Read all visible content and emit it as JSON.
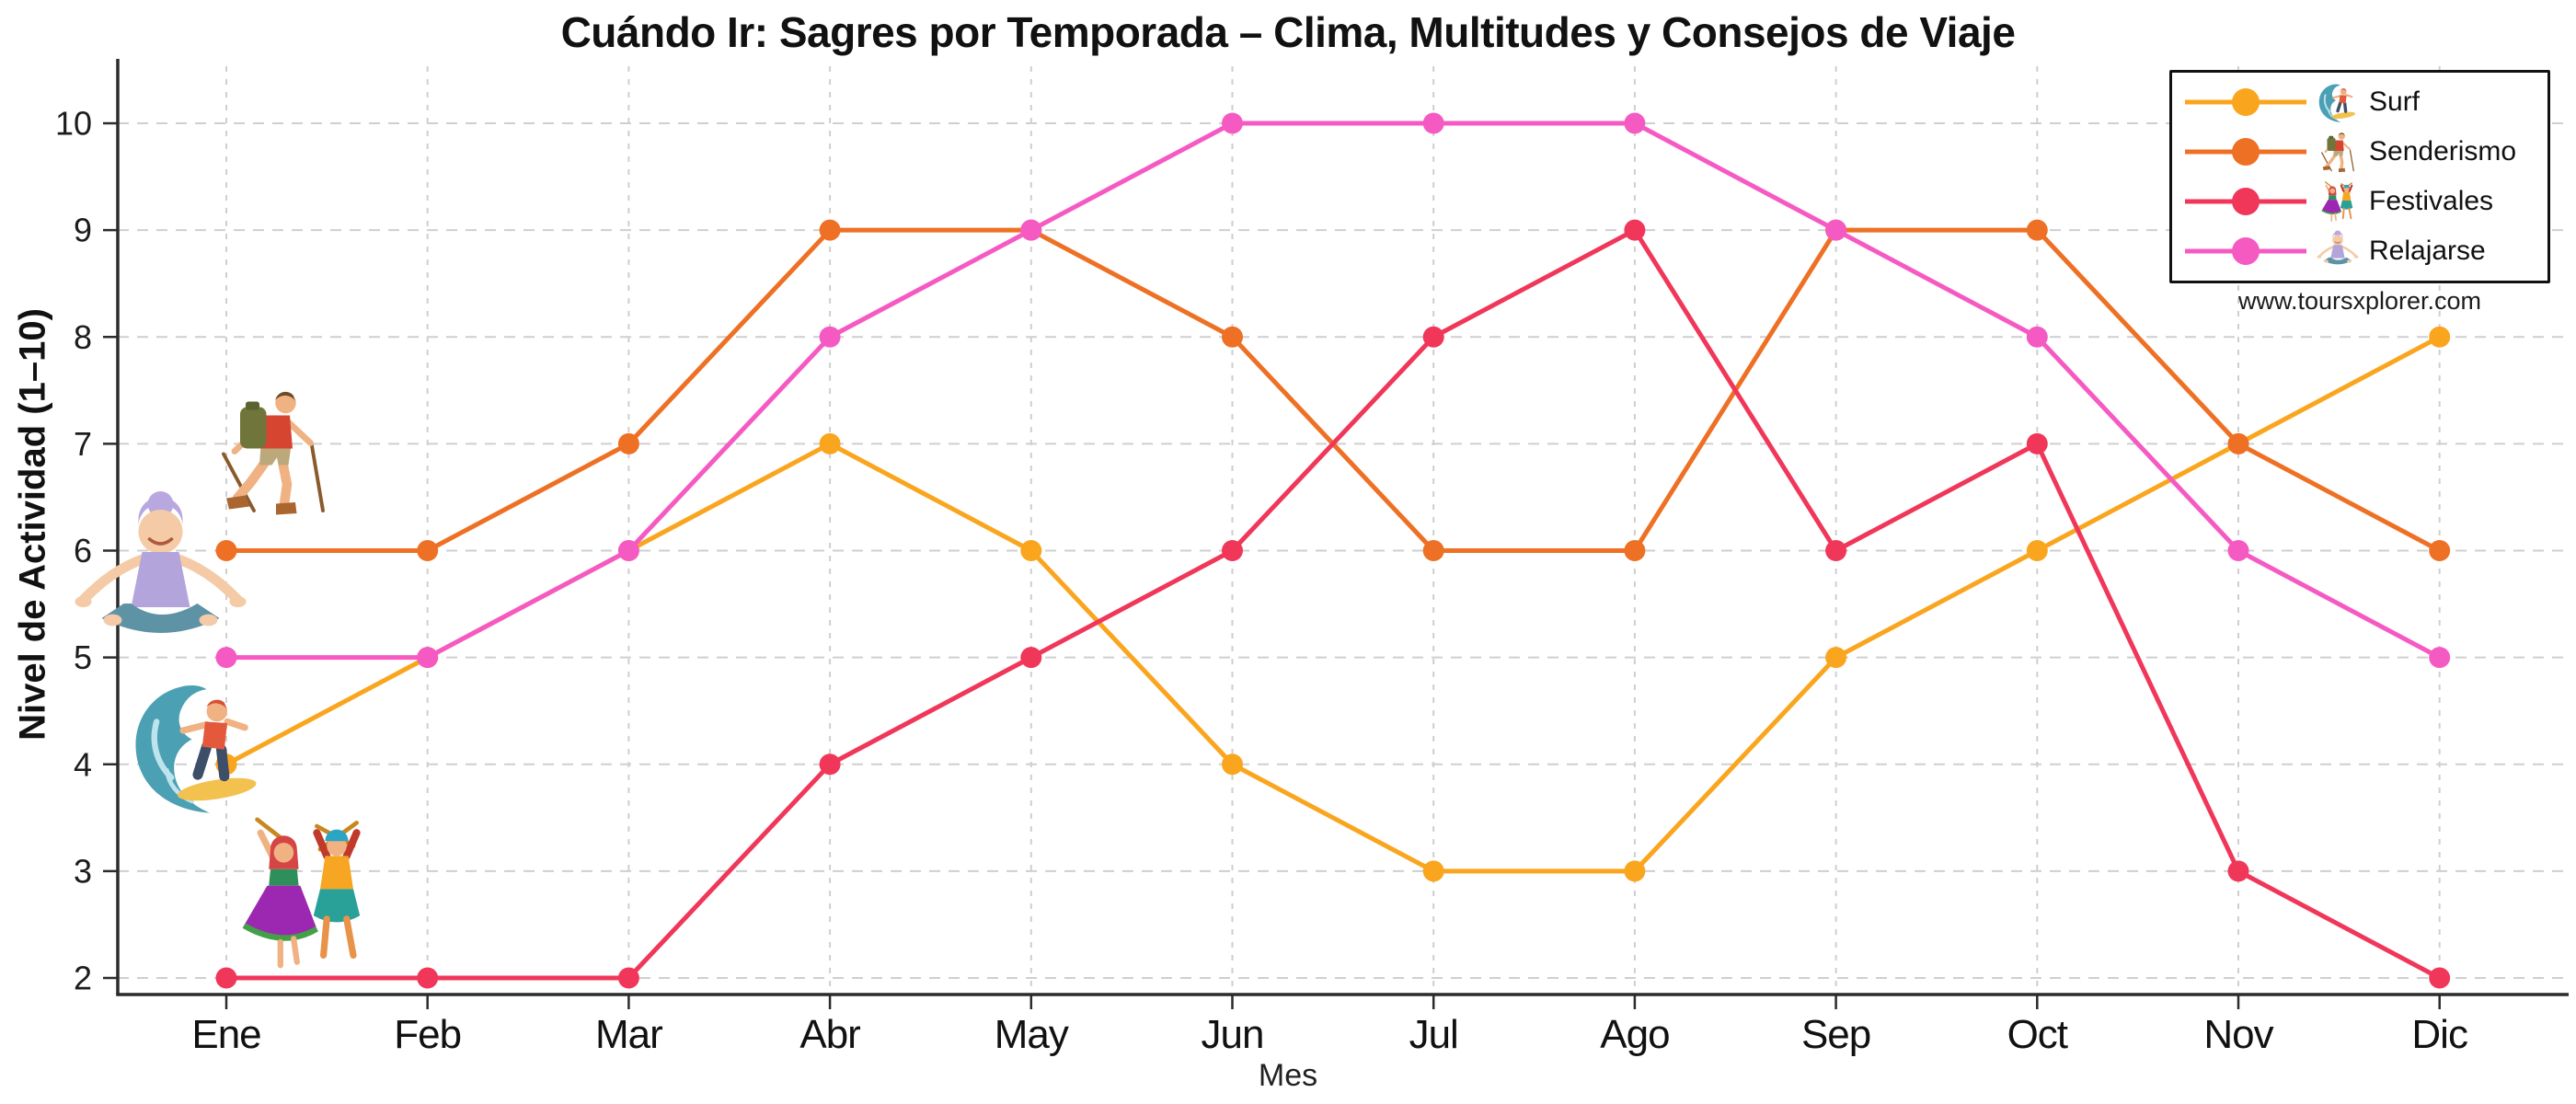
{
  "chart_data": {
    "type": "line",
    "title": "Cuándo Ir: Sagres por Temporada – Clima, Multitudes y Consejos de Viaje",
    "xlabel": "Mes",
    "ylabel": "Nivel de Actividad (1–10)",
    "watermark": "www.toursxplorer.com",
    "categories": [
      "Ene",
      "Feb",
      "Mar",
      "Abr",
      "May",
      "Jun",
      "Jul",
      "Ago",
      "Sep",
      "Oct",
      "Nov",
      "Dic"
    ],
    "yticks": [
      2,
      3,
      4,
      5,
      6,
      7,
      8,
      9,
      10
    ],
    "ylim": [
      1.5,
      10.5
    ],
    "grid": true,
    "legend_position": "top-right",
    "series": [
      {
        "name": "Surf",
        "icon": "surfer-icon",
        "color": "#FAA51E",
        "values": [
          4,
          5,
          6,
          7,
          6,
          4,
          3,
          3,
          5,
          6,
          7,
          8
        ]
      },
      {
        "name": "Senderismo",
        "icon": "hiker-icon",
        "color": "#EE7024",
        "values": [
          6,
          6,
          7,
          9,
          9,
          8,
          6,
          6,
          9,
          9,
          7,
          6
        ]
      },
      {
        "name": "Festivales",
        "icon": "dancers-icon",
        "color": "#F0375A",
        "values": [
          2,
          2,
          2,
          4,
          5,
          6,
          8,
          9,
          6,
          7,
          3,
          2
        ]
      },
      {
        "name": "Relajarse",
        "icon": "yoga-icon",
        "color": "#F55AC3",
        "values": [
          5,
          5,
          6,
          8,
          9,
          10,
          10,
          10,
          9,
          8,
          6,
          5
        ]
      }
    ],
    "colors": {
      "grid": "#cfcfcf",
      "axis": "#2b2b2b",
      "tick_text": "#1c1c1c"
    }
  }
}
